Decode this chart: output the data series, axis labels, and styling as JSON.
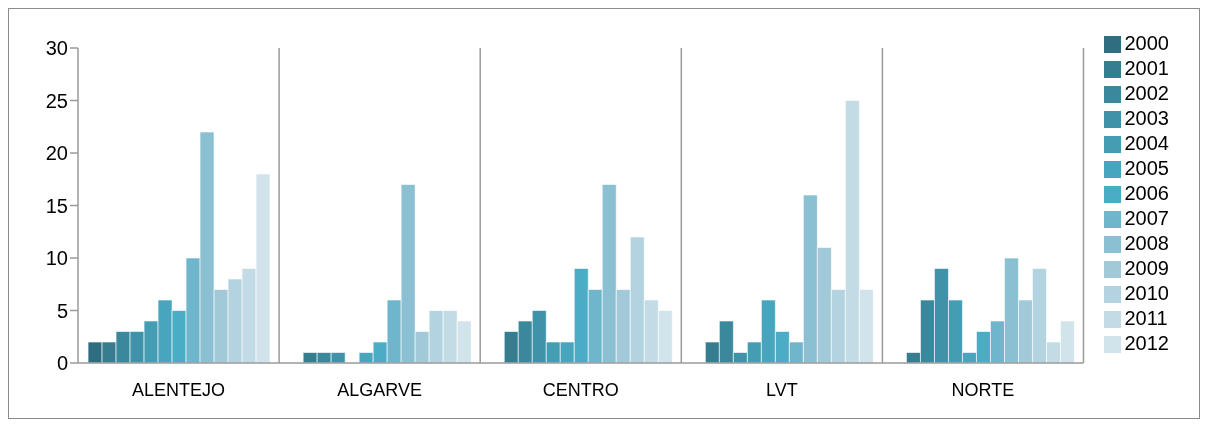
{
  "chart_data": {
    "type": "bar",
    "categories": [
      "ALENTEJO",
      "ALGARVE",
      "CENTRO",
      "LVT",
      "NORTE"
    ],
    "series": [
      {
        "name": "2000",
        "color": "#2f6e80",
        "values": [
          2,
          0,
          0,
          0,
          0
        ]
      },
      {
        "name": "2001",
        "color": "#357d8f",
        "values": [
          2,
          1,
          3,
          2,
          1
        ]
      },
      {
        "name": "2002",
        "color": "#3a889c",
        "values": [
          3,
          1,
          4,
          4,
          6
        ]
      },
      {
        "name": "2003",
        "color": "#3f92a8",
        "values": [
          3,
          1,
          5,
          1,
          9
        ]
      },
      {
        "name": "2004",
        "color": "#449db3",
        "values": [
          4,
          0,
          2,
          2,
          6
        ]
      },
      {
        "name": "2005",
        "color": "#47a5bd",
        "values": [
          6,
          1,
          2,
          6,
          1
        ]
      },
      {
        "name": "2006",
        "color": "#4badc5",
        "values": [
          5,
          2,
          9,
          3,
          3
        ]
      },
      {
        "name": "2007",
        "color": "#6fb5cb",
        "values": [
          10,
          6,
          7,
          2,
          4
        ]
      },
      {
        "name": "2008",
        "color": "#8bc0d2",
        "values": [
          22,
          17,
          17,
          16,
          10
        ]
      },
      {
        "name": "2009",
        "color": "#a2c9d8",
        "values": [
          7,
          3,
          7,
          11,
          6
        ]
      },
      {
        "name": "2010",
        "color": "#b2d3df",
        "values": [
          8,
          5,
          12,
          7,
          9
        ]
      },
      {
        "name": "2011",
        "color": "#c2dbe4",
        "values": [
          9,
          5,
          6,
          25,
          2
        ]
      },
      {
        "name": "2012",
        "color": "#d1e4eb",
        "values": [
          18,
          4,
          5,
          7,
          4
        ]
      }
    ],
    "ylim": [
      0,
      30
    ],
    "yticks": [
      0,
      5,
      10,
      15,
      20,
      25,
      30
    ],
    "grid": "x",
    "legend": "right"
  }
}
